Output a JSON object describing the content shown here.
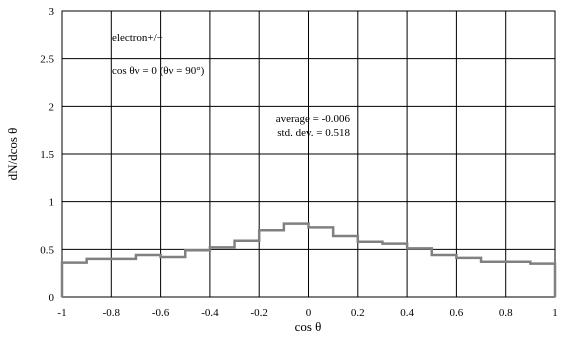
{
  "chart_data": {
    "type": "line",
    "title": "",
    "xlabel": "cos θ",
    "ylabel": "dN/dcos θ",
    "xlim": [
      -1,
      1
    ],
    "ylim": [
      0,
      3
    ],
    "x_ticks": [
      "-1",
      "-0.8",
      "-0.6",
      "-0.4",
      "-0.2",
      "0",
      "0.2",
      "0.4",
      "0.6",
      "0.8",
      "1"
    ],
    "y_ticks": [
      "0",
      "0.5",
      "1",
      "1.5",
      "2",
      "2.5",
      "3"
    ],
    "grid": true,
    "style": "step histogram",
    "series_color": "#808080",
    "bin_edges": [
      -1,
      -0.9,
      -0.8,
      -0.7,
      -0.6,
      -0.5,
      -0.4,
      -0.3,
      -0.2,
      -0.1,
      0,
      0.1,
      0.2,
      0.3,
      0.4,
      0.5,
      0.6,
      0.7,
      0.8,
      0.9,
      1
    ],
    "values": [
      0.36,
      0.4,
      0.4,
      0.44,
      0.42,
      0.49,
      0.52,
      0.59,
      0.7,
      0.77,
      0.73,
      0.64,
      0.58,
      0.56,
      0.51,
      0.44,
      0.41,
      0.37,
      0.37,
      0.35
    ],
    "annotations": {
      "particle": "electron+/−",
      "condition": "cos θν = 0 (θν = 90°)",
      "average": "average = -0.006",
      "std_dev": "std. dev. = 0.518"
    }
  }
}
